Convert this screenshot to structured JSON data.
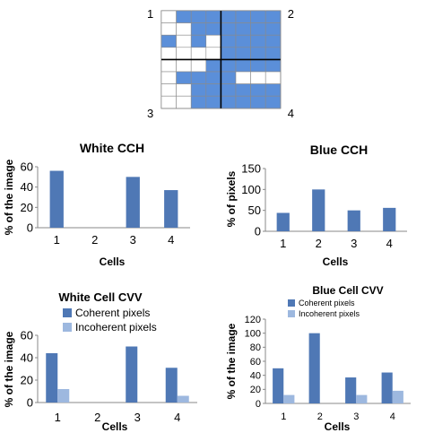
{
  "colors": {
    "cell_blue": "#5b8fd9",
    "coherent": "#4f78b5",
    "incoherent": "#9db8df",
    "grid": "#555555",
    "divider": "#000000"
  },
  "grid_figure": {
    "corner_labels": [
      "1",
      "2",
      "3",
      "4"
    ],
    "rows": 8,
    "cols": 8,
    "cells": [
      [
        0,
        1,
        1,
        1,
        1,
        1,
        1,
        1
      ],
      [
        0,
        0,
        1,
        1,
        1,
        1,
        1,
        1
      ],
      [
        1,
        0,
        1,
        0,
        1,
        1,
        1,
        1
      ],
      [
        0,
        0,
        0,
        0,
        1,
        1,
        1,
        1
      ],
      [
        0,
        0,
        0,
        1,
        1,
        1,
        1,
        1
      ],
      [
        0,
        1,
        1,
        1,
        1,
        0,
        0,
        0
      ],
      [
        0,
        0,
        1,
        1,
        1,
        1,
        1,
        1
      ],
      [
        0,
        0,
        1,
        1,
        1,
        1,
        1,
        1
      ]
    ]
  },
  "chart_data": [
    {
      "type": "bar",
      "title": "White CCH",
      "xlabel": "Cells",
      "ylabel": "% of the image",
      "categories": [
        "1",
        "2",
        "3",
        "4"
      ],
      "values": [
        56,
        0,
        50,
        37
      ],
      "ylim": [
        0,
        60
      ],
      "yticks": [
        "0",
        "20",
        "40",
        "60"
      ],
      "grid": false,
      "legend": null
    },
    {
      "type": "bar",
      "title": "Blue CCH",
      "xlabel": "Cells",
      "ylabel": "% of pixels",
      "categories": [
        "1",
        "2",
        "3",
        "4"
      ],
      "values": [
        44,
        100,
        50,
        56
      ],
      "ylim": [
        0,
        150
      ],
      "yticks": [
        "0",
        "50",
        "100",
        "150"
      ],
      "grid": false,
      "legend": null
    },
    {
      "type": "bar",
      "title": "White Cell CVV",
      "xlabel": "Cells",
      "ylabel": "% of the image",
      "categories": [
        "1",
        "2",
        "3",
        "4"
      ],
      "ylim": [
        0,
        60
      ],
      "yticks": [
        "0",
        "20",
        "40",
        "60"
      ],
      "grid": false,
      "legend": "top-left",
      "series": [
        {
          "name": "Coherent pixels",
          "values": [
            44,
            0,
            50,
            31
          ]
        },
        {
          "name": "Incoherent pixels",
          "values": [
            12,
            0,
            0,
            6
          ]
        }
      ]
    },
    {
      "type": "bar",
      "title": "Blue Cell CVV",
      "xlabel": "Cells",
      "ylabel": "% of the image",
      "categories": [
        "1",
        "2",
        "3",
        "4"
      ],
      "ylim": [
        0,
        120
      ],
      "yticks": [
        "0",
        "20",
        "40",
        "60",
        "80",
        "100",
        "120"
      ],
      "grid": false,
      "legend": "top-left",
      "series": [
        {
          "name": "Coherent pixels",
          "values": [
            50,
            100,
            37,
            44
          ]
        },
        {
          "name": "Incoherent pixels",
          "values": [
            12,
            0,
            12,
            18
          ]
        }
      ]
    }
  ]
}
